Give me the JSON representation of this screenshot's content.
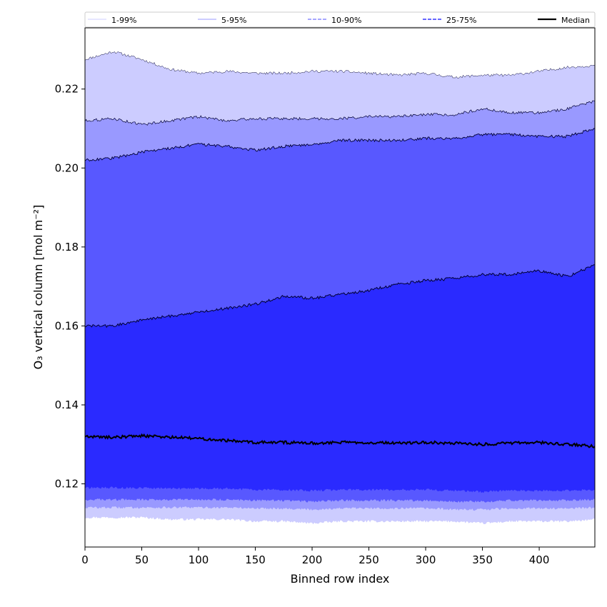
{
  "chart_data": {
    "type": "area",
    "xlabel": "Binned row index",
    "ylabel": "O₃ vertical column [mol m⁻²]",
    "xlim": [
      0,
      449
    ],
    "ylim": [
      0.104,
      0.2355
    ],
    "xticks": [
      0,
      50,
      100,
      150,
      200,
      250,
      300,
      350,
      400
    ],
    "yticks": [
      0.12,
      0.14,
      0.16,
      0.18,
      0.2,
      0.22
    ],
    "ytick_labels": [
      "0.12",
      "0.14",
      "0.16",
      "0.18",
      "0.20",
      "0.22"
    ],
    "grid": false,
    "legend_position": "top",
    "colors": {
      "band_1_99": "#ccccff",
      "band_5_95": "#9999ff",
      "band_10_90": "#5858ff",
      "band_25_75": "#2a2aff",
      "median": "#000000"
    },
    "legend": [
      {
        "label": "1-99%",
        "color": "#ccccff",
        "style": "solid-thin"
      },
      {
        "label": "5-95%",
        "color": "#9999ff",
        "style": "solid-thin"
      },
      {
        "label": "10-90%",
        "color": "#8888ff",
        "style": "dashed"
      },
      {
        "label": "25-75%",
        "color": "#3333ff",
        "style": "dashed"
      },
      {
        "label": "Median",
        "color": "#000000",
        "style": "solid-thick"
      }
    ],
    "x": [
      0,
      25,
      50,
      75,
      100,
      125,
      150,
      175,
      200,
      225,
      250,
      275,
      300,
      325,
      350,
      375,
      400,
      425,
      449
    ],
    "series": [
      {
        "name": "1-99%",
        "upper": [
          0.2275,
          0.2295,
          0.2275,
          0.225,
          0.224,
          0.2245,
          0.224,
          0.224,
          0.2245,
          0.2245,
          0.224,
          0.2235,
          0.224,
          0.223,
          0.2235,
          0.2235,
          0.2245,
          0.2255,
          0.226
        ],
        "lower": [
          0.1115,
          0.1115,
          0.1115,
          0.111,
          0.111,
          0.111,
          0.1105,
          0.1105,
          0.11,
          0.1105,
          0.1105,
          0.1105,
          0.1105,
          0.1105,
          0.11,
          0.1105,
          0.1105,
          0.1105,
          0.111
        ]
      },
      {
        "name": "5-95%",
        "upper": [
          0.212,
          0.2125,
          0.211,
          0.212,
          0.213,
          0.212,
          0.2125,
          0.2125,
          0.2125,
          0.2125,
          0.213,
          0.213,
          0.2135,
          0.2135,
          0.215,
          0.214,
          0.214,
          0.215,
          0.217
        ],
        "lower": [
          0.114,
          0.114,
          0.114,
          0.114,
          0.114,
          0.114,
          0.1138,
          0.1138,
          0.1135,
          0.1138,
          0.1138,
          0.1138,
          0.1138,
          0.1135,
          0.1135,
          0.1138,
          0.1138,
          0.1138,
          0.114
        ]
      },
      {
        "name": "10-90%",
        "upper": [
          0.202,
          0.2025,
          0.204,
          0.205,
          0.206,
          0.2055,
          0.2045,
          0.2055,
          0.206,
          0.207,
          0.207,
          0.207,
          0.2075,
          0.2075,
          0.2085,
          0.2085,
          0.208,
          0.208,
          0.21
        ],
        "lower": [
          0.116,
          0.116,
          0.116,
          0.116,
          0.116,
          0.116,
          0.1158,
          0.1158,
          0.1155,
          0.1158,
          0.1158,
          0.1158,
          0.1158,
          0.1155,
          0.1155,
          0.1158,
          0.1158,
          0.1158,
          0.116
        ]
      },
      {
        "name": "25-75%",
        "upper": [
          0.16,
          0.16,
          0.1615,
          0.1625,
          0.1635,
          0.1645,
          0.1655,
          0.1675,
          0.167,
          0.168,
          0.169,
          0.1705,
          0.1715,
          0.172,
          0.173,
          0.173,
          0.174,
          0.1725,
          0.1755
        ],
        "lower": [
          0.119,
          0.119,
          0.119,
          0.1188,
          0.1188,
          0.1188,
          0.1185,
          0.1185,
          0.1183,
          0.1185,
          0.1185,
          0.1185,
          0.1185,
          0.1183,
          0.118,
          0.1183,
          0.1183,
          0.1183,
          0.1185
        ]
      },
      {
        "name": "Median",
        "values": [
          0.132,
          0.1318,
          0.1322,
          0.1318,
          0.1315,
          0.131,
          0.1305,
          0.1305,
          0.1303,
          0.1305,
          0.1305,
          0.1303,
          0.1305,
          0.1303,
          0.13,
          0.1303,
          0.1305,
          0.13,
          0.1295
        ]
      }
    ]
  }
}
